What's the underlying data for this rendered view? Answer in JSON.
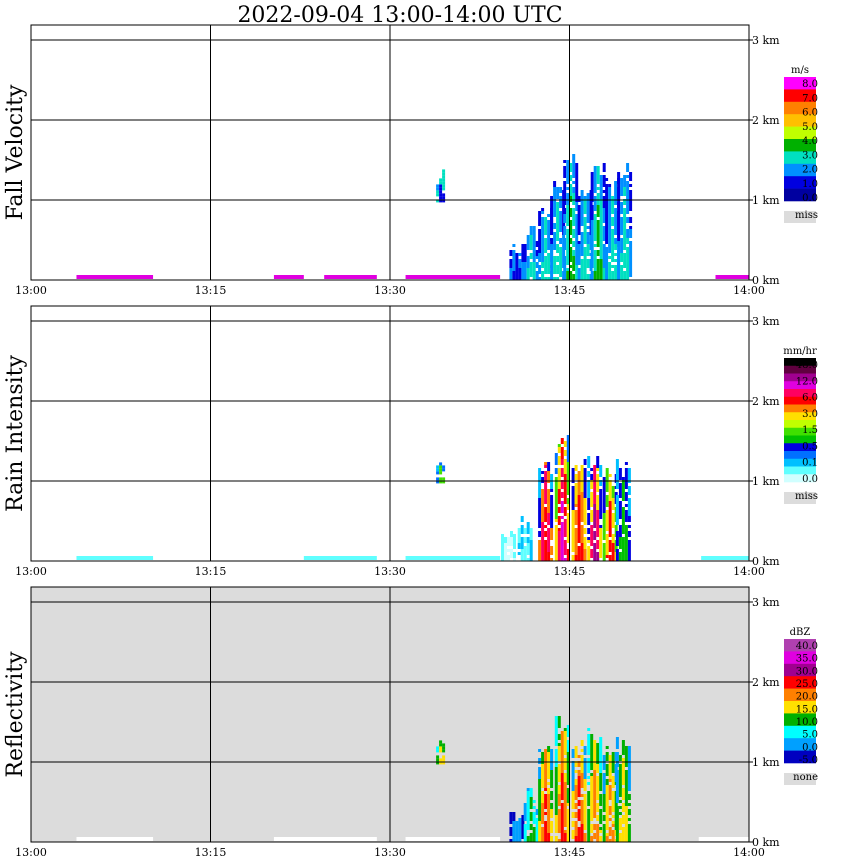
{
  "title": "2022-09-04   13:00-14:00 UTC",
  "colors": {
    "background": "#ffffff",
    "missing": "#dcdcdc",
    "grid": "#000000"
  },
  "chart_data": [
    {
      "type": "heatmap",
      "ylabel": "Fall Velocity",
      "x_ticks": [
        "13:00",
        "13:15",
        "13:30",
        "13:45",
        "14:00"
      ],
      "y_ticks": [
        "0 km",
        "1 km",
        "2 km",
        "3 km"
      ],
      "ylim_km": [
        0,
        3.0
      ],
      "xlim_min": [
        0,
        60
      ],
      "legend": {
        "unit": "m/s",
        "labels": [
          "8.0",
          "7.0",
          "6.0",
          "5.0",
          "4.0",
          "3.0",
          "2.0",
          "1.0",
          "0.0"
        ],
        "colors": [
          "#ff00ff",
          "#ff0000",
          "#ff8000",
          "#ffc000",
          "#c0ff00",
          "#00b000",
          "#00e0c0",
          "#0090ff",
          "#0000e0",
          "#0000a0"
        ],
        "missing_label": "miss"
      },
      "background": "#ffffff",
      "surface_color": "#e000e0",
      "surface_segments": [
        [
          3.8,
          10.2
        ],
        [
          20.3,
          22.8
        ],
        [
          24.5,
          28.9
        ],
        [
          31.3,
          39.2
        ],
        [
          57.2,
          60.0
        ]
      ],
      "blobs": [
        {
          "t": 34.2,
          "h": 1.42,
          "colors": [
            "#0090ff",
            "#00e0c0",
            "#0000e0"
          ]
        },
        {
          "t": 40.5,
          "h": 0.5,
          "colors": [
            "#0000e0",
            "#0090ff",
            "#0000e0"
          ]
        },
        {
          "t": 41.7,
          "h": 0.72,
          "colors": [
            "#0000e0",
            "#0090ff",
            "#00e0c0"
          ]
        },
        {
          "t": 42.9,
          "h": 0.98,
          "colors": [
            "#0000e0",
            "#0090ff",
            "#00e0c0"
          ]
        },
        {
          "t": 43.9,
          "h": 1.3,
          "colors": [
            "#0000e0",
            "#0090ff",
            "#00e0c0"
          ]
        },
        {
          "t": 45.0,
          "h": 1.64,
          "colors": [
            "#0000e0",
            "#0090ff",
            "#00e0c0",
            "#00b000"
          ]
        },
        {
          "t": 46.2,
          "h": 1.3,
          "colors": [
            "#0000e0",
            "#0090ff",
            "#00e0c0"
          ]
        },
        {
          "t": 47.3,
          "h": 1.5,
          "colors": [
            "#0000e0",
            "#0090ff",
            "#00e0c0",
            "#00b000"
          ]
        },
        {
          "t": 48.5,
          "h": 1.32,
          "colors": [
            "#0000e0",
            "#0090ff",
            "#00e0c0"
          ]
        },
        {
          "t": 49.5,
          "h": 1.48,
          "colors": [
            "#0000e0",
            "#0090ff",
            "#00e0c0"
          ]
        }
      ]
    },
    {
      "type": "heatmap",
      "ylabel": "Rain Intensity",
      "x_ticks": [
        "13:00",
        "13:15",
        "13:30",
        "13:45",
        "14:00"
      ],
      "y_ticks": [
        "0 km",
        "1 km",
        "2 km",
        "3 km"
      ],
      "ylim_km": [
        0,
        3.0
      ],
      "xlim_min": [
        0,
        60
      ],
      "legend": {
        "unit": "mm/hr",
        "labels": [
          "48.0",
          "12.0",
          "6.0",
          "3.0",
          "1.5",
          "0.5",
          "0.1",
          "0.0"
        ],
        "colors": [
          "#000000",
          "#600040",
          "#a00090",
          "#e000e0",
          "#ff0060",
          "#ff0000",
          "#ff8000",
          "#ffe000",
          "#c0ff00",
          "#40e000",
          "#00c000",
          "#0000e0",
          "#0070ff",
          "#00c0ff",
          "#60ffff",
          "#d0ffff"
        ],
        "missing_label": "miss"
      },
      "background": "#ffffff",
      "surface_color": "#60ffff",
      "surface_segments": [
        [
          3.8,
          10.2
        ],
        [
          22.8,
          28.9
        ],
        [
          31.3,
          39.2
        ],
        [
          56.0,
          60.0
        ]
      ],
      "blobs": [
        {
          "t": 34.2,
          "h": 1.42,
          "colors": [
            "#00c0ff",
            "#0070ff",
            "#40e000"
          ]
        },
        {
          "t": 39.8,
          "h": 0.45,
          "colors": [
            "#60ffff",
            "#d0ffff"
          ]
        },
        {
          "t": 41.2,
          "h": 0.65,
          "colors": [
            "#60ffff",
            "#00c0ff",
            "#60ffff"
          ]
        },
        {
          "t": 42.9,
          "h": 1.3,
          "colors": [
            "#00c0ff",
            "#0000e0",
            "#ff8000",
            "#ff0060",
            "#ff0000"
          ]
        },
        {
          "t": 44.3,
          "h": 1.6,
          "colors": [
            "#0070ff",
            "#40e000",
            "#ffe000",
            "#ff0000",
            "#ff0060",
            "#e000e0"
          ]
        },
        {
          "t": 45.7,
          "h": 1.3,
          "colors": [
            "#0000e0",
            "#ffe000",
            "#ff8000",
            "#ff0000"
          ]
        },
        {
          "t": 47.0,
          "h": 1.35,
          "colors": [
            "#00c0ff",
            "#0000e0",
            "#ffe000",
            "#ff0060",
            "#a00090"
          ]
        },
        {
          "t": 48.3,
          "h": 1.2,
          "colors": [
            "#0000e0",
            "#40e000",
            "#ffe000",
            "#ff0000"
          ]
        },
        {
          "t": 49.4,
          "h": 1.3,
          "colors": [
            "#00c0ff",
            "#0000e0",
            "#00c000"
          ]
        }
      ]
    },
    {
      "type": "heatmap",
      "ylabel": "Reflectivity",
      "x_ticks": [
        "13:00",
        "13:15",
        "13:30",
        "13:45",
        "14:00"
      ],
      "y_ticks": [
        "0 km",
        "1 km",
        "2 km",
        "3 km"
      ],
      "ylim_km": [
        0,
        3.0
      ],
      "xlim_min": [
        0,
        60
      ],
      "legend": {
        "unit": "dBZ",
        "labels": [
          "40.0",
          "35.0",
          "30.0",
          "25.0",
          "20.0",
          "15.0",
          "10.0",
          "5.0",
          "0.0",
          "-5.0"
        ],
        "colors": [
          "#b040b0",
          "#e000e0",
          "#a00090",
          "#ff0000",
          "#ff8000",
          "#ffe000",
          "#00b000",
          "#00ffff",
          "#00a0ff",
          "#0000c0"
        ],
        "missing_label": "none"
      },
      "background": "#dcdcdc",
      "surface_color": "#ffffff",
      "surface_segments": [
        [
          3.8,
          10.2
        ],
        [
          20.3,
          28.9
        ],
        [
          31.3,
          39.2
        ],
        [
          55.8,
          60.0
        ]
      ],
      "blobs": [
        {
          "t": 34.2,
          "h": 1.42,
          "colors": [
            "#00ffff",
            "#00b000",
            "#ffe000"
          ]
        },
        {
          "t": 40.5,
          "h": 0.5,
          "colors": [
            "#0000c0",
            "#00a0ff"
          ]
        },
        {
          "t": 41.7,
          "h": 0.72,
          "colors": [
            "#00a0ff",
            "#00ffff",
            "#00b000"
          ]
        },
        {
          "t": 42.9,
          "h": 1.3,
          "colors": [
            "#00a0ff",
            "#00b000",
            "#ffe000",
            "#ff8000",
            "#ff0000"
          ]
        },
        {
          "t": 44.3,
          "h": 1.6,
          "colors": [
            "#00ffff",
            "#00b000",
            "#ffe000",
            "#ff8000",
            "#ff0000"
          ]
        },
        {
          "t": 45.7,
          "h": 1.3,
          "colors": [
            "#00a0ff",
            "#ffe000",
            "#ff8000",
            "#ff0000"
          ]
        },
        {
          "t": 47.0,
          "h": 1.45,
          "colors": [
            "#00ffff",
            "#00b000",
            "#ffe000",
            "#ff8000"
          ]
        },
        {
          "t": 48.3,
          "h": 1.25,
          "colors": [
            "#00a0ff",
            "#00b000",
            "#ffe000",
            "#ff8000"
          ]
        },
        {
          "t": 49.4,
          "h": 1.35,
          "colors": [
            "#00a0ff",
            "#00b000",
            "#ffe000"
          ]
        }
      ]
    }
  ]
}
